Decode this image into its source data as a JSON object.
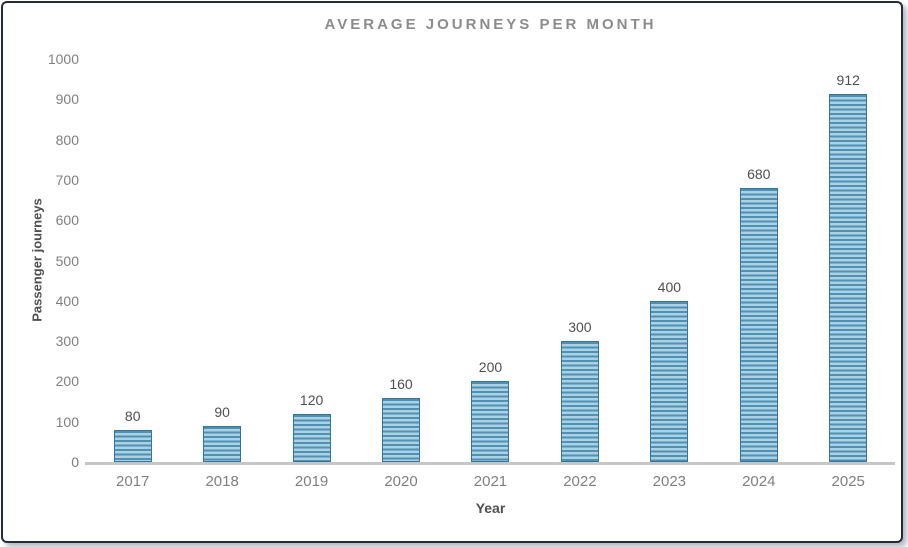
{
  "window": {
    "background": "#ffffff",
    "frame_border": "#252b38"
  },
  "chart_data": {
    "type": "bar",
    "title": "AVERAGE JOURNEYS PER MONTH",
    "xlabel": "Year",
    "ylabel": "Passenger journeys",
    "categories": [
      "2017",
      "2018",
      "2019",
      "2020",
      "2021",
      "2022",
      "2023",
      "2024",
      "2025"
    ],
    "values": [
      80,
      90,
      120,
      160,
      200,
      300,
      400,
      680,
      912
    ],
    "data_labels": [
      "80",
      "90",
      "120",
      "160",
      "200",
      "300",
      "400",
      "680",
      "912"
    ],
    "ylim": [
      0,
      1000
    ],
    "yticks": [
      0,
      100,
      200,
      300,
      400,
      500,
      600,
      700,
      800,
      900,
      1000
    ],
    "grid": false,
    "legend_position": "none",
    "colors": {
      "bar_fill_light": "#abd1e2",
      "bar_stripe": "#4f90b5",
      "bar_border": "#34759e",
      "title_text": "#8c8c8c",
      "axis_text": "#7f7f7f",
      "label_text": "#4f4f4f",
      "axis_line": "#c6c6c6",
      "frame_border": "#252b38"
    }
  }
}
